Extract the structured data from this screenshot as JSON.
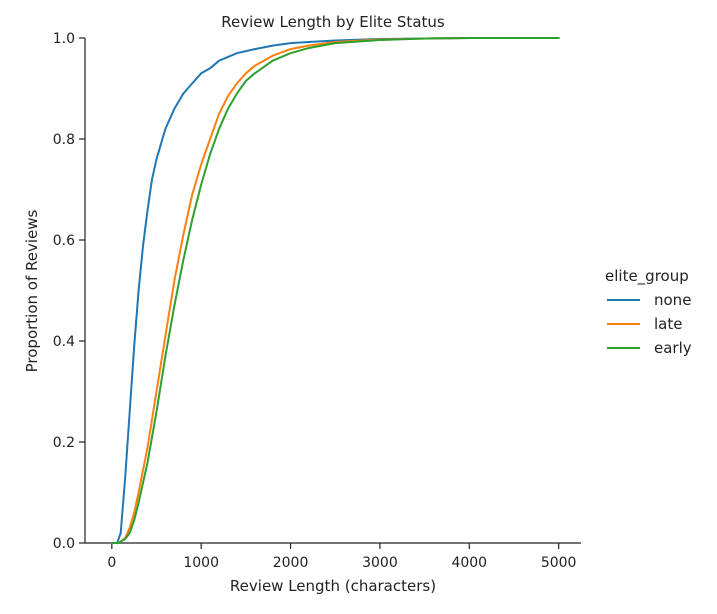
{
  "chart_data": {
    "type": "line",
    "title": "Review Length by Elite Status",
    "xlabel": "Review Length (characters)",
    "ylabel": "Proportion of Reviews",
    "xlim": [
      -300,
      5250
    ],
    "ylim": [
      0,
      1
    ],
    "xticks": [
      0,
      1000,
      2000,
      3000,
      4000,
      5000
    ],
    "xtick_labels": [
      "0",
      "1000",
      "2000",
      "3000",
      "4000",
      "5000"
    ],
    "yticks": [
      0,
      0.2,
      0.4,
      0.6,
      0.8,
      1.0
    ],
    "ytick_labels": [
      "0.0",
      "0.2",
      "0.4",
      "0.6",
      "0.8",
      "1.0"
    ],
    "grid": false,
    "legend": {
      "title": "elite_group",
      "placement": "right"
    },
    "series": [
      {
        "name": "none",
        "color": "#1f77b4",
        "x": [
          0,
          60,
          100,
          150,
          200,
          250,
          300,
          350,
          400,
          450,
          500,
          600,
          700,
          800,
          900,
          1000,
          1100,
          1200,
          1400,
          1600,
          1800,
          2000,
          2200,
          2500,
          3000,
          3500,
          4000,
          5000
        ],
        "y": [
          0,
          0.0,
          0.02,
          0.13,
          0.26,
          0.39,
          0.5,
          0.59,
          0.66,
          0.72,
          0.76,
          0.82,
          0.86,
          0.89,
          0.91,
          0.93,
          0.94,
          0.955,
          0.97,
          0.978,
          0.985,
          0.99,
          0.992,
          0.995,
          0.998,
          0.999,
          1.0,
          1.0
        ]
      },
      {
        "name": "late",
        "color": "#ff7f0e",
        "x": [
          0,
          80,
          100,
          150,
          200,
          250,
          300,
          400,
          500,
          600,
          700,
          800,
          900,
          1000,
          1100,
          1200,
          1300,
          1400,
          1500,
          1600,
          1800,
          2000,
          2200,
          2500,
          3000,
          3500,
          4000,
          5000
        ],
        "y": [
          0,
          0.0,
          0.003,
          0.01,
          0.03,
          0.06,
          0.1,
          0.19,
          0.3,
          0.41,
          0.52,
          0.61,
          0.69,
          0.75,
          0.8,
          0.85,
          0.885,
          0.91,
          0.93,
          0.945,
          0.965,
          0.978,
          0.985,
          0.992,
          0.997,
          0.999,
          1.0,
          1.0
        ]
      },
      {
        "name": "early",
        "color": "#2ca02c",
        "x": [
          0,
          80,
          100,
          150,
          200,
          250,
          300,
          400,
          500,
          600,
          700,
          800,
          900,
          1000,
          1100,
          1200,
          1300,
          1400,
          1500,
          1600,
          1800,
          2000,
          2200,
          2500,
          3000,
          3500,
          4000,
          5000
        ],
        "y": [
          0,
          0.0,
          0.003,
          0.008,
          0.02,
          0.045,
          0.08,
          0.16,
          0.26,
          0.37,
          0.47,
          0.56,
          0.64,
          0.71,
          0.77,
          0.82,
          0.86,
          0.89,
          0.915,
          0.93,
          0.955,
          0.97,
          0.98,
          0.99,
          0.996,
          0.999,
          1.0,
          1.0
        ]
      }
    ]
  }
}
